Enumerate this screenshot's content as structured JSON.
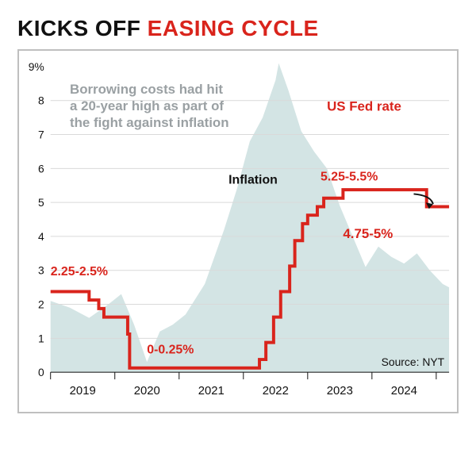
{
  "headline": {
    "part1": "KICKS OFF ",
    "part2": "EASING CYCLE"
  },
  "chart": {
    "type": "line+area",
    "background_color": "#ffffff",
    "border_color": "#bfbfbf",
    "grid_color": "#d9d9d9",
    "y_axis": {
      "min": 0,
      "max": 9,
      "ticks": [
        0,
        1,
        2,
        3,
        4,
        5,
        6,
        7,
        8
      ],
      "top_label": "9%",
      "label_fontsize": 14
    },
    "x_axis": {
      "ticks": [
        0,
        1,
        2,
        3,
        4,
        5,
        6
      ],
      "labels": [
        "2019",
        "2020",
        "2021",
        "2022",
        "2023",
        "2024"
      ],
      "label_fontsize": 15
    },
    "subhead": {
      "lines": [
        "Borrowing costs had hit",
        "a 20-year high as part of",
        "the fight against inflation"
      ],
      "fontsize": 17,
      "color": "#9aa0a3"
    },
    "series_label": {
      "text": "US Fed rate",
      "fontsize": 17,
      "color": "#d9241c"
    },
    "inflation_label": {
      "text": "Inflation",
      "fontsize": 16,
      "color": "#111111"
    },
    "annotations": {
      "start": "2.25-2.5%",
      "low": "0-0.25%",
      "peak": "5.25-5.5%",
      "cut": "4.75-5%"
    },
    "source": "Source: NYT",
    "inflation_area": {
      "color": "#d3e4e4",
      "points_xy": [
        [
          0.0,
          2.1
        ],
        [
          0.3,
          1.9
        ],
        [
          0.6,
          1.6
        ],
        [
          0.9,
          2.0
        ],
        [
          1.1,
          2.3
        ],
        [
          1.3,
          1.4
        ],
        [
          1.5,
          0.3
        ],
        [
          1.7,
          1.2
        ],
        [
          1.9,
          1.4
        ],
        [
          2.1,
          1.7
        ],
        [
          2.4,
          2.6
        ],
        [
          2.7,
          4.2
        ],
        [
          2.9,
          5.4
        ],
        [
          3.1,
          6.8
        ],
        [
          3.3,
          7.5
        ],
        [
          3.5,
          8.6
        ],
        [
          3.55,
          9.1
        ],
        [
          3.7,
          8.3
        ],
        [
          3.9,
          7.1
        ],
        [
          4.1,
          6.5
        ],
        [
          4.3,
          6.0
        ],
        [
          4.5,
          4.9
        ],
        [
          4.7,
          4.0
        ],
        [
          4.9,
          3.1
        ],
        [
          5.1,
          3.7
        ],
        [
          5.3,
          3.4
        ],
        [
          5.5,
          3.2
        ],
        [
          5.7,
          3.5
        ],
        [
          5.9,
          3.0
        ],
        [
          6.1,
          2.6
        ],
        [
          6.2,
          2.5
        ]
      ]
    },
    "fed_rate": {
      "color": "#d9241c",
      "line_width": 4,
      "steps_xy": [
        [
          0.0,
          2.375
        ],
        [
          0.6,
          2.375
        ],
        [
          0.6,
          2.125
        ],
        [
          0.75,
          2.125
        ],
        [
          0.75,
          1.875
        ],
        [
          0.83,
          1.875
        ],
        [
          0.83,
          1.625
        ],
        [
          1.2,
          1.625
        ],
        [
          1.2,
          1.125
        ],
        [
          1.23,
          1.125
        ],
        [
          1.23,
          0.125
        ],
        [
          3.25,
          0.125
        ],
        [
          3.25,
          0.375
        ],
        [
          3.35,
          0.375
        ],
        [
          3.35,
          0.875
        ],
        [
          3.47,
          0.875
        ],
        [
          3.47,
          1.625
        ],
        [
          3.58,
          1.625
        ],
        [
          3.58,
          2.375
        ],
        [
          3.72,
          2.375
        ],
        [
          3.72,
          3.125
        ],
        [
          3.8,
          3.125
        ],
        [
          3.8,
          3.875
        ],
        [
          3.92,
          3.875
        ],
        [
          3.92,
          4.375
        ],
        [
          4.0,
          4.375
        ],
        [
          4.0,
          4.625
        ],
        [
          4.15,
          4.625
        ],
        [
          4.15,
          4.875
        ],
        [
          4.25,
          4.875
        ],
        [
          4.25,
          5.125
        ],
        [
          4.55,
          5.125
        ],
        [
          4.55,
          5.375
        ],
        [
          5.85,
          5.375
        ],
        [
          5.85,
          4.875
        ],
        [
          6.2,
          4.875
        ]
      ]
    }
  }
}
